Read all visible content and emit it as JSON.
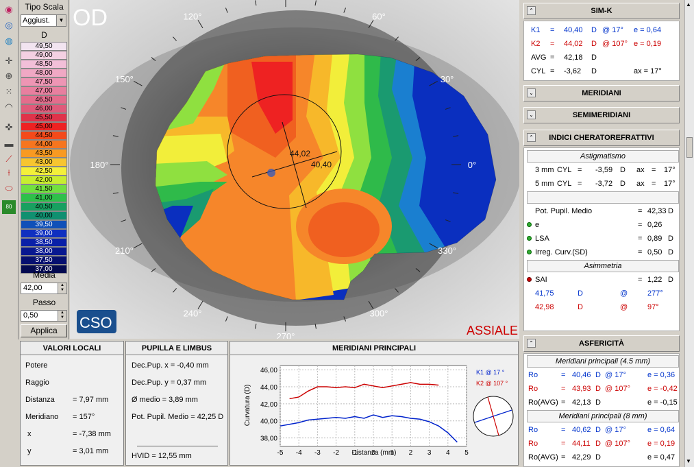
{
  "toolbar": {
    "icons": [
      "topography-icon",
      "eye-icon",
      "eye-alt-icon",
      "crosshair-icon",
      "target-icon",
      "dotted-grid-icon",
      "rings-icon",
      "pupil-cross-icon",
      "ruler-icon",
      "profile-chart-icon",
      "measure-icon",
      "ellipse-icon",
      "numeric-map-icon"
    ],
    "numeric_label": "80"
  },
  "scale": {
    "type_label": "Tipo Scala",
    "type_value": "Aggiust.",
    "unit": "D",
    "values": [
      "49,50",
      "49,00",
      "48,50",
      "48,00",
      "47,50",
      "47,00",
      "46,50",
      "46,00",
      "45,50",
      "45,00",
      "44,50",
      "44,00",
      "43,50",
      "43,00",
      "42,50",
      "42,00",
      "41,50",
      "41,00",
      "40,50",
      "40,00",
      "39,50",
      "39,00",
      "38,50",
      "38,00",
      "37,50",
      "37,00"
    ],
    "colors": [
      "#f2e4f0",
      "#f4d0e2",
      "#f2bfd8",
      "#f0a8c4",
      "#ee95b4",
      "#e87f9f",
      "#e46c8c",
      "#e05a7a",
      "#e0334a",
      "#ee2222",
      "#f44a1a",
      "#f6751f",
      "#f89a22",
      "#f7c530",
      "#f4f03a",
      "#c8ee30",
      "#72e040",
      "#2ec04a",
      "#18a060",
      "#109070",
      "#1050b8",
      "#1030c0",
      "#0a20a8",
      "#081890",
      "#061070",
      "#040a50"
    ],
    "media_label": "Media",
    "media_value": "42,00",
    "passo_label": "Passo",
    "passo_value": "0,50",
    "apply_label": "Applica"
  },
  "map": {
    "eye": "OD",
    "mode": "ASSIALE",
    "logo": "CSO",
    "axis_labels": [
      {
        "text": "120°",
        "deg": 120
      },
      {
        "text": "60°",
        "deg": 60
      },
      {
        "text": "150°",
        "deg": 150
      },
      {
        "text": "30°",
        "deg": 30
      },
      {
        "text": "180°",
        "deg": 180
      },
      {
        "text": "0°",
        "deg": 0
      },
      {
        "text": "210°",
        "deg": 210
      },
      {
        "text": "330°",
        "deg": 330
      },
      {
        "text": "240°",
        "deg": 240
      },
      {
        "text": "300°",
        "deg": 300
      },
      {
        "text": "270°",
        "deg": 270
      }
    ],
    "k2_label": "44,02",
    "k1_label": "40,40"
  },
  "simk": {
    "title": "SIM-K",
    "k1": {
      "name": "K1",
      "eq": "=",
      "value": "40,40",
      "unit": "D",
      "axis": "@ 17°",
      "e": "e = 0,64"
    },
    "k2": {
      "name": "K2",
      "eq": "=",
      "value": "44,02",
      "unit": "D",
      "axis": "@ 107°",
      "e": "e = 0,19"
    },
    "avg": {
      "name": "AVG",
      "eq": "=",
      "value": "42,18",
      "unit": "D"
    },
    "cyl": {
      "name": "CYL",
      "eq": "=",
      "value": "-3,62",
      "unit": "D",
      "axis": "ax = 17°"
    }
  },
  "meridiani": {
    "title": "MERIDIANI"
  },
  "semimeridiani": {
    "title": "SEMIMERIDIANI"
  },
  "indici": {
    "title": "INDICI CHERATOREFRATTIVI",
    "astig_title": "Astigmatismo",
    "astig": [
      {
        "zone": "3 mm",
        "name": "CYL",
        "eq": "=",
        "value": "-3,59",
        "unit": "D",
        "ax": "ax",
        "eq2": "=",
        "deg": "17°"
      },
      {
        "zone": "5 mm",
        "name": "CYL",
        "eq": "=",
        "value": "-3,72",
        "unit": "D",
        "ax": "ax",
        "eq2": "=",
        "deg": "17°"
      }
    ],
    "rows": [
      {
        "name": "Pot. Pupil. Medio",
        "eq": "=",
        "value": "42,33",
        "unit": "D",
        "dot": ""
      },
      {
        "name": "e",
        "eq": "=",
        "value": "0,26",
        "unit": "",
        "dot": "green"
      },
      {
        "name": "LSA",
        "eq": "=",
        "value": "0,89",
        "unit": "D",
        "dot": "green"
      },
      {
        "name": "Irreg. Curv.(SD)",
        "eq": "=",
        "value": "0,50",
        "unit": "D",
        "dot": "green"
      }
    ],
    "asim_title": "Asimmetria",
    "sai": {
      "name": "SAI",
      "eq": "=",
      "value": "1,22",
      "unit": "D"
    },
    "asim_rows": [
      {
        "value": "41,75",
        "unit": "D",
        "at": "@",
        "deg": "277°"
      },
      {
        "value": "42,98",
        "unit": "D",
        "at": "@",
        "deg": "97°"
      }
    ]
  },
  "asfericita": {
    "title": "ASFERICITÀ",
    "sub1": "Meridiani principali (4.5 mm)",
    "rows1": [
      {
        "name": "Ro",
        "eq": "=",
        "value": "40,46",
        "unit": "D",
        "axis": "@ 17°",
        "e": "e = 0,36"
      },
      {
        "name": "Ro",
        "eq": "=",
        "value": "43,93",
        "unit": "D",
        "axis": "@ 107°",
        "e": "e = -0,42"
      },
      {
        "name": "Ro(AVG)",
        "eq": "=",
        "value": "42,13",
        "unit": "D",
        "axis": "",
        "e": "e = -0,15"
      }
    ],
    "sub2": "Meridiani principali (8 mm)",
    "rows2": [
      {
        "name": "Ro",
        "eq": "=",
        "value": "40,62",
        "unit": "D",
        "axis": "@ 17°",
        "e": "e = 0,64"
      },
      {
        "name": "Ro",
        "eq": "=",
        "value": "44,11",
        "unit": "D",
        "axis": "@ 107°",
        "e": "e = 0,19"
      },
      {
        "name": "Ro(AVG)",
        "eq": "=",
        "value": "42,29",
        "unit": "D",
        "axis": "",
        "e": "e = 0,47"
      }
    ]
  },
  "valori_locali": {
    "title": "VALORI LOCALI",
    "rows": [
      {
        "name": "Potere",
        "value": ""
      },
      {
        "name": "Raggio",
        "value": ""
      },
      {
        "name": "Distanza",
        "value": "= 7,97 mm"
      },
      {
        "name": "Meridiano",
        "value": "= 157°"
      },
      {
        "name": "x",
        "value": "= -7,38 mm"
      },
      {
        "name": "y",
        "value": "= 3,01 mm"
      }
    ]
  },
  "pupilla": {
    "title": "PUPILLA E LIMBUS",
    "rows": [
      "Dec.Pup. x = -0,40 mm",
      "Dec.Pup. y = 0,37 mm",
      "Ø medio = 3,89 mm",
      "Pot. Pupil. Medio = 42,25 D"
    ],
    "hvid": "HVID = 12,55 mm"
  },
  "meridiani_principali": {
    "title": "MERIDIANI PRINCIPALI",
    "legend_k1": "K1 @ 17 °",
    "legend_k2": "K2 @ 107 °"
  },
  "chart_data": {
    "type": "line",
    "title": "MERIDIANI PRINCIPALI",
    "xlabel": "Distanza (mm)",
    "ylabel": "Curvatura (D)",
    "xlim": [
      -5,
      5
    ],
    "ylim": [
      37.0,
      46.5
    ],
    "xticks": [
      "-5",
      "-4",
      "-3",
      "-2",
      "-1",
      "0",
      "1",
      "2",
      "3",
      "4",
      "5"
    ],
    "yticks": [
      "46,00",
      "44,00",
      "42,00",
      "40,00",
      "38,00"
    ],
    "grid": true,
    "series": [
      {
        "name": "K2 @ 107 °",
        "color": "#cc0000",
        "x": [
          -4.5,
          -4,
          -3.5,
          -3,
          -2.5,
          -2,
          -1.5,
          -1,
          -0.5,
          0,
          0.5,
          1,
          1.5,
          2,
          2.5,
          3,
          3.5
        ],
        "y": [
          42.6,
          42.8,
          43.5,
          44.0,
          44.0,
          43.9,
          44.0,
          43.9,
          44.3,
          44.1,
          43.9,
          44.1,
          44.3,
          44.5,
          44.3,
          44.3,
          44.2
        ]
      },
      {
        "name": "K1 @ 17 °",
        "color": "#0022cc",
        "x": [
          -5,
          -4.5,
          -4,
          -3.5,
          -3,
          -2.5,
          -2,
          -1.5,
          -1,
          -0.5,
          0,
          0.5,
          1,
          1.5,
          2,
          2.5,
          3,
          3.5,
          4,
          4.5
        ],
        "y": [
          39.4,
          39.6,
          39.8,
          40.1,
          40.2,
          40.3,
          40.4,
          40.3,
          40.5,
          40.3,
          40.7,
          40.4,
          40.6,
          40.5,
          40.3,
          40.2,
          39.9,
          39.4,
          38.6,
          37.5
        ]
      }
    ]
  }
}
